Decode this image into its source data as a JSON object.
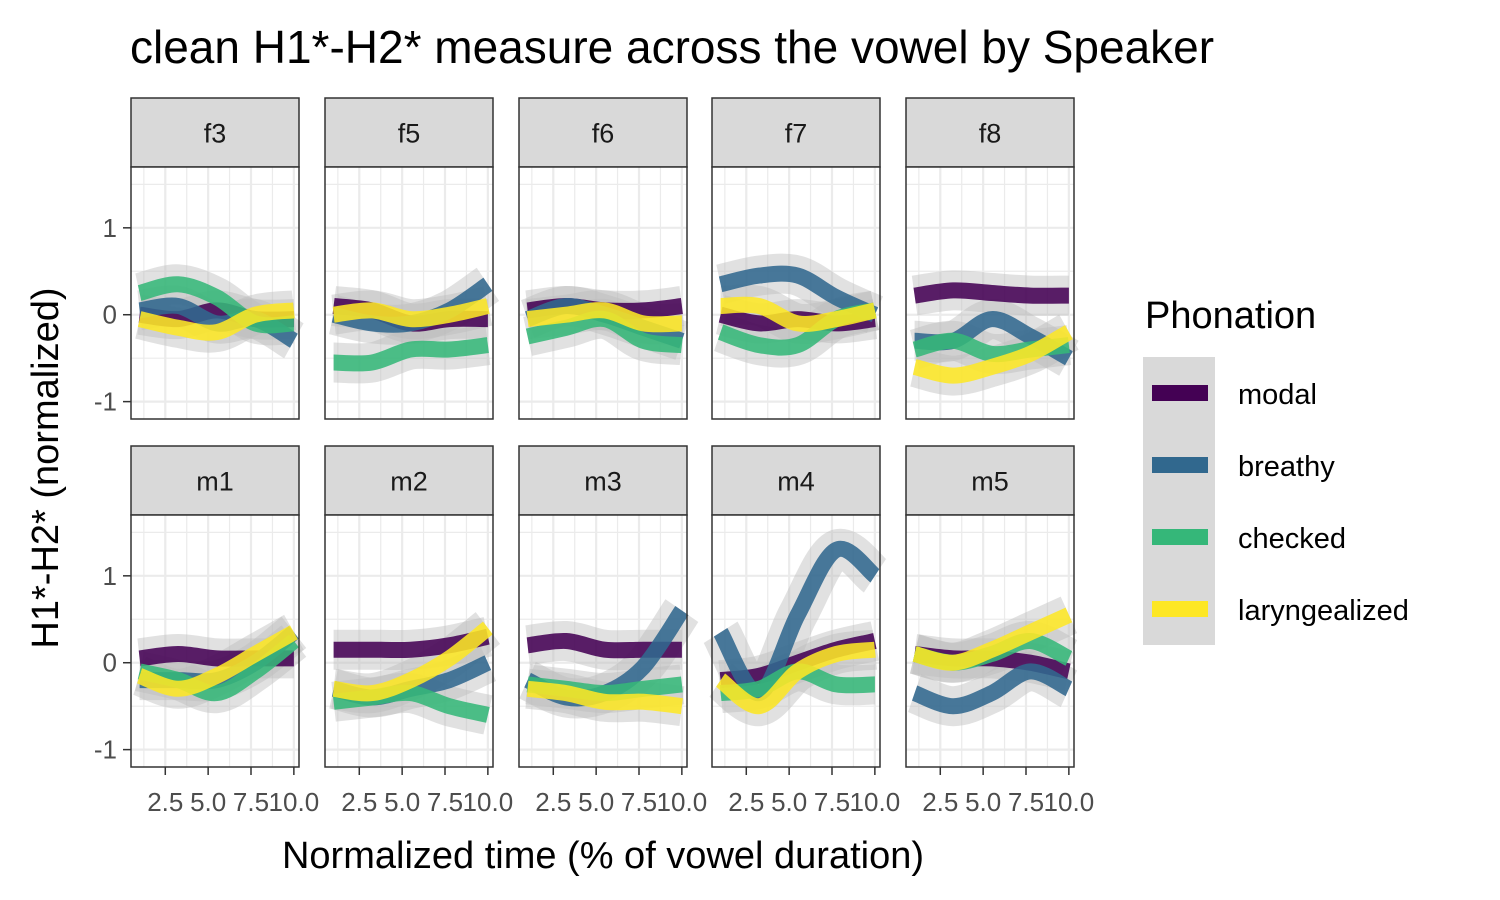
{
  "chart_data": {
    "type": "line",
    "title": "clean H1*-H2* measure across the vowel by Speaker",
    "xlabel": "Normalized time (% of vowel duration)",
    "ylabel": "H1*-H2* (normalized)",
    "xlim": [
      0.5,
      10.3
    ],
    "ylim": [
      -1.2,
      1.7
    ],
    "x_ticks": [
      2.5,
      5.0,
      7.5,
      10.0
    ],
    "x_tick_labels": [
      "2.5",
      "5.0",
      "7.5",
      "10.0"
    ],
    "y_ticks": [
      -1,
      0,
      1
    ],
    "y_tick_labels": [
      "-1",
      "0",
      "1"
    ],
    "grid": true,
    "legend": {
      "title": "Phonation",
      "position": "right",
      "entries": [
        "modal",
        "breathy",
        "checked",
        "laryngealized"
      ]
    },
    "colors": {
      "modal": "#440154",
      "breathy": "#31688e",
      "checked": "#35b779",
      "laryngealized": "#fde725",
      "ribbon": "#bdbdbd",
      "strip_bg": "#d9d9d9",
      "grid": "#ebebeb"
    },
    "x": [
      1,
      3.25,
      5.5,
      7.75,
      10
    ],
    "panels": [
      {
        "speaker": "f3",
        "series": [
          {
            "name": "modal",
            "values": [
              0.0,
              -0.05,
              0.05,
              -0.05,
              -0.05
            ]
          },
          {
            "name": "breathy",
            "values": [
              0.05,
              0.1,
              -0.1,
              -0.05,
              -0.3
            ]
          },
          {
            "name": "checked",
            "values": [
              0.25,
              0.35,
              0.2,
              -0.1,
              -0.1
            ]
          },
          {
            "name": "laryngealized",
            "values": [
              -0.05,
              -0.15,
              -0.2,
              0.0,
              0.05
            ]
          }
        ]
      },
      {
        "speaker": "f5",
        "series": [
          {
            "name": "modal",
            "values": [
              0.1,
              0.05,
              -0.1,
              -0.05,
              -0.05
            ]
          },
          {
            "name": "breathy",
            "values": [
              0.0,
              -0.1,
              -0.1,
              0.05,
              0.35
            ]
          },
          {
            "name": "checked",
            "values": [
              -0.55,
              -0.55,
              -0.4,
              -0.4,
              -0.35
            ]
          },
          {
            "name": "laryngealized",
            "values": [
              0.0,
              0.05,
              -0.05,
              0.0,
              0.1
            ]
          }
        ]
      },
      {
        "speaker": "f6",
        "series": [
          {
            "name": "modal",
            "values": [
              0.05,
              0.1,
              0.05,
              0.05,
              0.1
            ]
          },
          {
            "name": "breathy",
            "values": [
              -0.05,
              0.1,
              0.0,
              -0.15,
              -0.3
            ]
          },
          {
            "name": "checked",
            "values": [
              -0.25,
              -0.15,
              -0.05,
              -0.3,
              -0.35
            ]
          },
          {
            "name": "laryngealized",
            "values": [
              -0.05,
              0.0,
              0.05,
              -0.1,
              -0.1
            ]
          }
        ]
      },
      {
        "speaker": "f7",
        "series": [
          {
            "name": "modal",
            "values": [
              0.0,
              -0.1,
              -0.05,
              -0.1,
              -0.05
            ]
          },
          {
            "name": "breathy",
            "values": [
              0.35,
              0.45,
              0.45,
              0.2,
              0.0
            ]
          },
          {
            "name": "checked",
            "values": [
              -0.2,
              -0.35,
              -0.35,
              -0.05,
              0.05
            ]
          },
          {
            "name": "laryngealized",
            "values": [
              0.1,
              0.1,
              -0.1,
              -0.05,
              0.05
            ]
          }
        ]
      },
      {
        "speaker": "f8",
        "series": [
          {
            "name": "modal",
            "values": [
              0.22,
              0.28,
              0.25,
              0.22,
              0.22
            ]
          },
          {
            "name": "breathy",
            "values": [
              -0.3,
              -0.3,
              -0.05,
              -0.25,
              -0.5
            ]
          },
          {
            "name": "checked",
            "values": [
              -0.4,
              -0.3,
              -0.45,
              -0.4,
              -0.35
            ]
          },
          {
            "name": "laryngealized",
            "values": [
              -0.6,
              -0.7,
              -0.6,
              -0.45,
              -0.2
            ]
          }
        ]
      },
      {
        "speaker": "m1",
        "series": [
          {
            "name": "modal",
            "values": [
              0.05,
              0.1,
              0.05,
              0.05,
              0.05
            ]
          },
          {
            "name": "breathy",
            "values": [
              -0.2,
              -0.2,
              -0.2,
              0.0,
              0.35
            ]
          },
          {
            "name": "checked",
            "values": [
              -0.1,
              -0.2,
              -0.35,
              -0.1,
              0.25
            ]
          },
          {
            "name": "laryngealized",
            "values": [
              -0.15,
              -0.3,
              -0.15,
              0.1,
              0.35
            ]
          }
        ]
      },
      {
        "speaker": "m2",
        "series": [
          {
            "name": "modal",
            "values": [
              0.15,
              0.15,
              0.15,
              0.2,
              0.3
            ]
          },
          {
            "name": "breathy",
            "values": [
              -0.3,
              -0.4,
              -0.3,
              -0.2,
              0.0
            ]
          },
          {
            "name": "checked",
            "values": [
              -0.45,
              -0.4,
              -0.35,
              -0.5,
              -0.6
            ]
          },
          {
            "name": "laryngealized",
            "values": [
              -0.3,
              -0.35,
              -0.2,
              0.05,
              0.4
            ]
          }
        ]
      },
      {
        "speaker": "m3",
        "series": [
          {
            "name": "modal",
            "values": [
              0.2,
              0.25,
              0.15,
              0.15,
              0.15
            ]
          },
          {
            "name": "breathy",
            "values": [
              -0.2,
              -0.4,
              -0.35,
              -0.05,
              0.6
            ]
          },
          {
            "name": "checked",
            "values": [
              -0.25,
              -0.3,
              -0.35,
              -0.3,
              -0.25
            ]
          },
          {
            "name": "laryngealized",
            "values": [
              -0.3,
              -0.35,
              -0.45,
              -0.45,
              -0.5
            ]
          }
        ]
      },
      {
        "speaker": "m4",
        "series": [
          {
            "name": "modal",
            "values": [
              -0.2,
              -0.15,
              0.0,
              0.15,
              0.25
            ]
          },
          {
            "name": "breathy",
            "values": [
              0.35,
              -0.35,
              0.55,
              1.3,
              1.0
            ]
          },
          {
            "name": "checked",
            "values": [
              -0.35,
              -0.3,
              -0.1,
              -0.25,
              -0.25
            ]
          },
          {
            "name": "laryngealized",
            "values": [
              -0.2,
              -0.5,
              -0.1,
              0.1,
              0.15
            ]
          }
        ]
      },
      {
        "speaker": "m5",
        "series": [
          {
            "name": "modal",
            "values": [
              0.1,
              0.05,
              0.05,
              0.0,
              -0.1
            ]
          },
          {
            "name": "breathy",
            "values": [
              -0.35,
              -0.5,
              -0.35,
              -0.1,
              -0.3
            ]
          },
          {
            "name": "checked",
            "values": [
              0.1,
              0.0,
              0.1,
              0.25,
              0.05
            ]
          },
          {
            "name": "laryngealized",
            "values": [
              0.1,
              0.0,
              0.15,
              0.35,
              0.55
            ]
          }
        ]
      }
    ]
  }
}
